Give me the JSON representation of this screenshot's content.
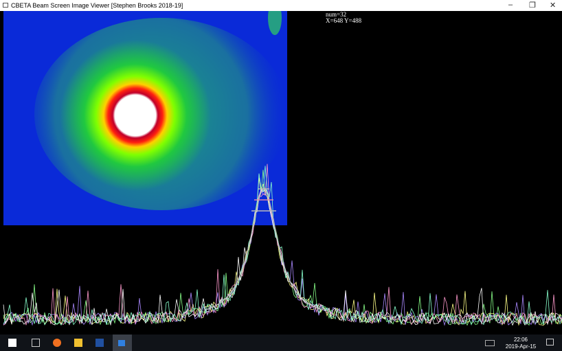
{
  "window": {
    "title": "CBETA Beam Screen Image Viewer [Stephen Brooks 2018-19]"
  },
  "overlay": {
    "count": "num=32",
    "position": "X=648 Y=488"
  },
  "taskbar": {
    "time": "22:06",
    "date": "2019-Apr-15"
  }
}
